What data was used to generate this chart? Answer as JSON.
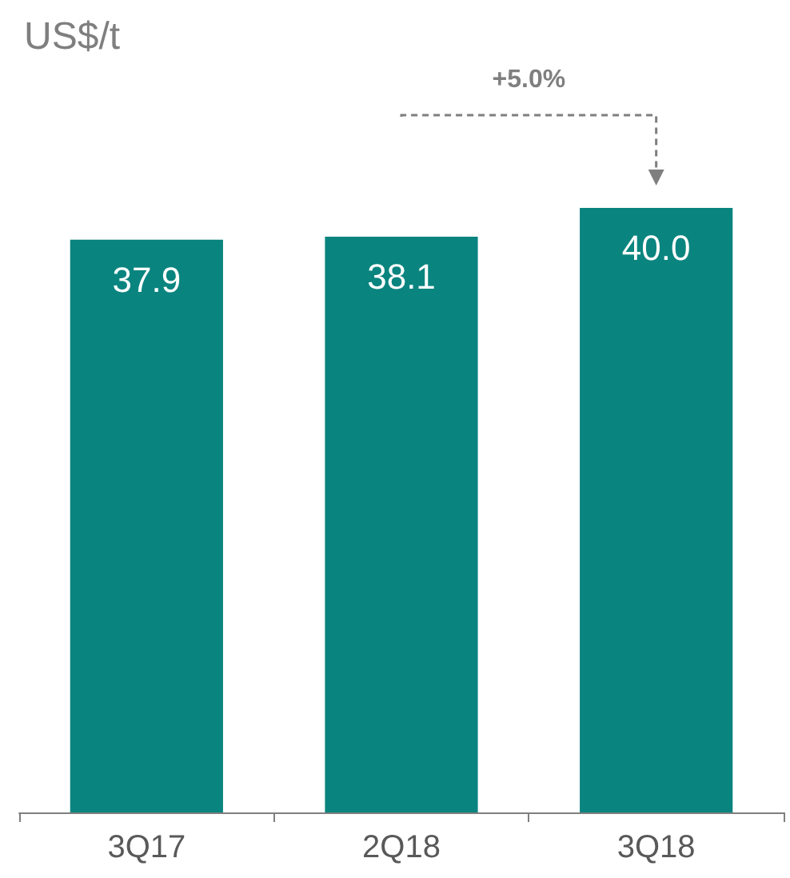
{
  "chart_data": {
    "type": "bar",
    "title": "US$/t",
    "categories": [
      "3Q17",
      "2Q18",
      "3Q18"
    ],
    "values": [
      37.9,
      38.1,
      40.0
    ],
    "color": "#0a847f",
    "value_labels": [
      "37.9",
      "38.1",
      "40.0"
    ],
    "tick_labels": "x",
    "annotations": [
      "+5.0%"
    ]
  }
}
